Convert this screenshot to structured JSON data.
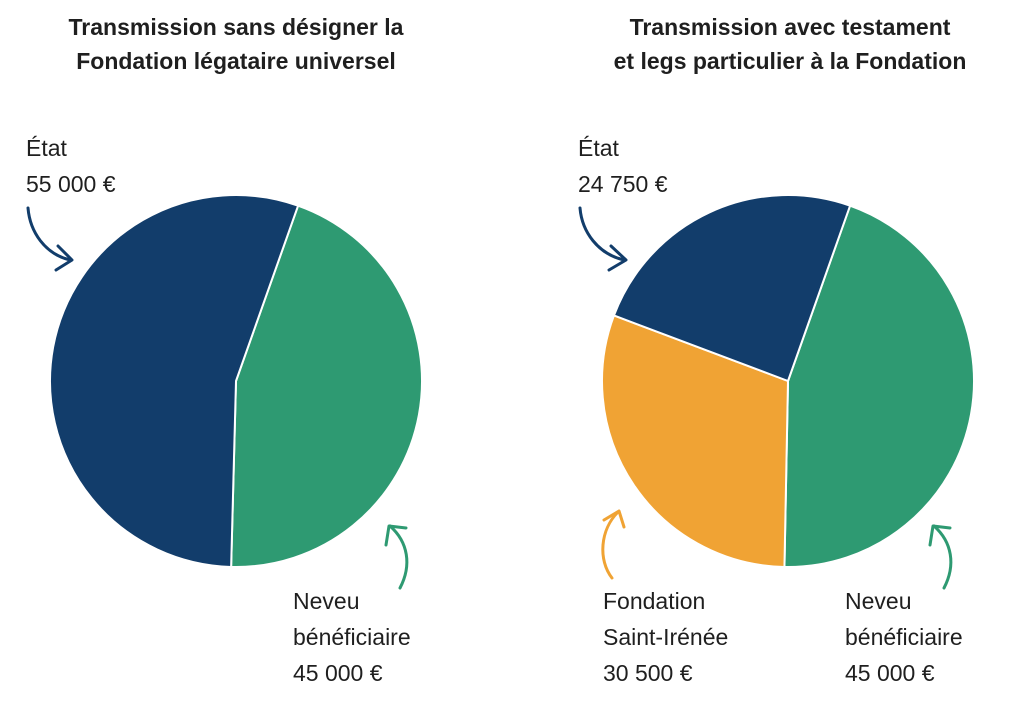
{
  "colors": {
    "etat": "#123d6b",
    "neveu": "#2e9a72",
    "fondation": "#f0a334",
    "divider": "#ffffff"
  },
  "chart_data": [
    {
      "type": "pie",
      "title_lines": [
        "Transmission sans désigner la",
        "Fondation légataire universel"
      ],
      "slices": [
        {
          "key": "etat",
          "label_lines": [
            "État",
            "55 000 €"
          ],
          "value": 55000,
          "color": "#123d6b"
        },
        {
          "key": "neveu",
          "label_lines": [
            "Neveu",
            "bénéficiaire",
            "45 000 €"
          ],
          "value": 45000,
          "color": "#2e9a72"
        }
      ]
    },
    {
      "type": "pie",
      "title_lines": [
        "Transmission avec testament",
        "et legs particulier à la Fondation"
      ],
      "slices": [
        {
          "key": "etat",
          "label_lines": [
            "État",
            "24 750 €"
          ],
          "value": 24750,
          "color": "#123d6b"
        },
        {
          "key": "neveu",
          "label_lines": [
            "Neveu",
            "bénéficiaire",
            "45 000 €"
          ],
          "value": 45000,
          "color": "#2e9a72"
        },
        {
          "key": "fondation",
          "label_lines": [
            "Fondation",
            "Saint-Irénée",
            "30 500 €"
          ],
          "value": 30500,
          "color": "#f0a334"
        }
      ]
    }
  ]
}
